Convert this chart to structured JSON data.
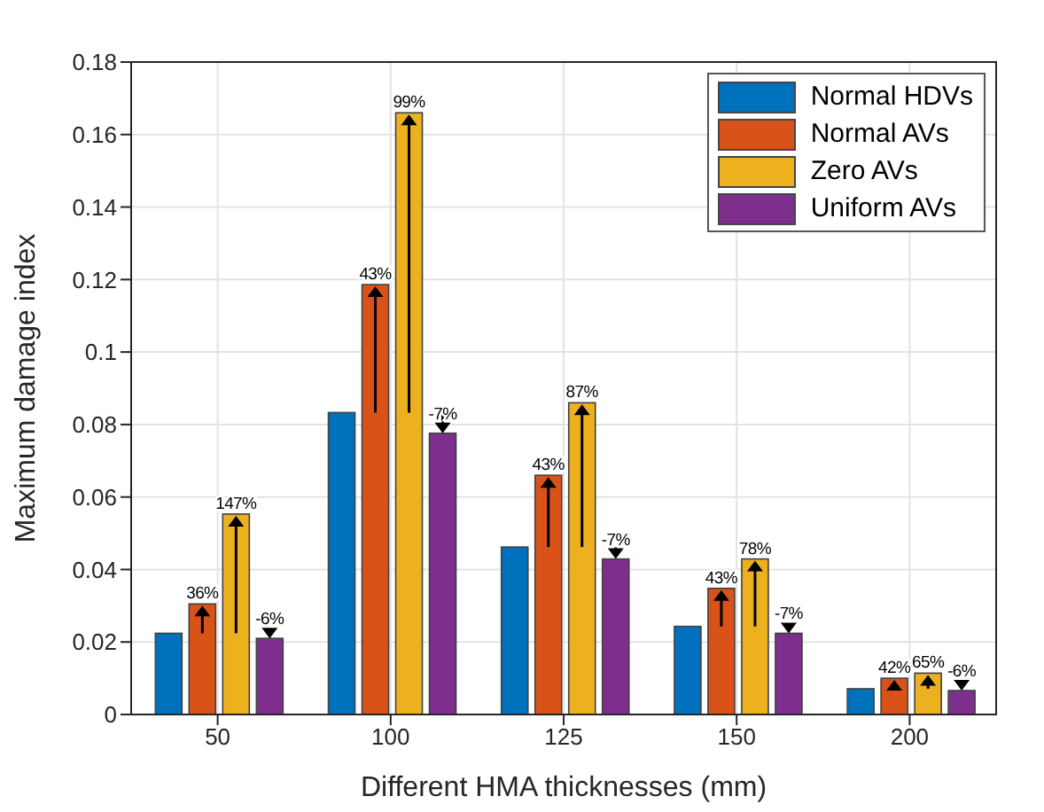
{
  "chart_data": {
    "type": "bar",
    "xlabel": "Different HMA thicknesses (mm)",
    "ylabel": "Maximum damage index",
    "categories": [
      "50",
      "100",
      "125",
      "150",
      "200"
    ],
    "series": [
      {
        "name": "Normal HDVs",
        "color": "#0072bd",
        "values": [
          0.0224,
          0.0833,
          0.0462,
          0.0243,
          0.0071
        ]
      },
      {
        "name": "Normal AVs",
        "color": "#d95319",
        "values": [
          0.0305,
          0.1186,
          0.066,
          0.0348,
          0.01
        ]
      },
      {
        "name": "Zero AVs",
        "color": "#edb120",
        "values": [
          0.0553,
          0.166,
          0.086,
          0.0429,
          0.0114
        ]
      },
      {
        "name": "Uniform AVs",
        "color": "#7e2f8e",
        "values": [
          0.021,
          0.0776,
          0.0429,
          0.0224,
          0.0066
        ]
      }
    ],
    "annotations": [
      {
        "text": "36%",
        "x": "50",
        "y": 0.0305
      },
      {
        "text": "147%",
        "x": "50",
        "y": 0.0553
      },
      {
        "text": "-6%",
        "x": "50",
        "y": 0.021
      },
      {
        "text": "43%",
        "x": "100",
        "y": 0.1186
      },
      {
        "text": "99%",
        "x": "100",
        "y": 0.166
      },
      {
        "text": "-7%",
        "x": "100",
        "y": 0.0776
      },
      {
        "text": "43%",
        "x": "125",
        "y": 0.066
      },
      {
        "text": "87%",
        "x": "125",
        "y": 0.086
      },
      {
        "text": "-7%",
        "x": "125",
        "y": 0.0429
      },
      {
        "text": "43%",
        "x": "150",
        "y": 0.0348
      },
      {
        "text": "78%",
        "x": "150",
        "y": 0.0429
      },
      {
        "text": "-7%",
        "x": "150",
        "y": 0.0224
      },
      {
        "text": "42%",
        "x": "200",
        "y": 0.01
      },
      {
        "text": "65%",
        "x": "200",
        "y": 0.0114
      },
      {
        "text": "-6%",
        "x": "200",
        "y": 0.0066
      }
    ],
    "ylim": [
      0,
      0.18
    ],
    "yticks": [
      0,
      0.02,
      0.04,
      0.06,
      0.08,
      0.1,
      0.12,
      0.14,
      0.16,
      0.18
    ],
    "grid": true,
    "legend": "top right"
  }
}
